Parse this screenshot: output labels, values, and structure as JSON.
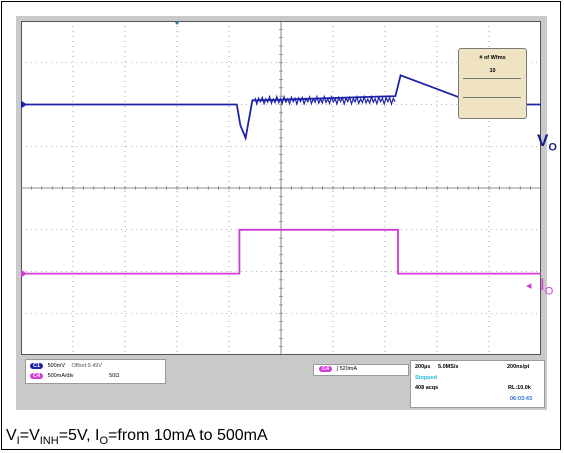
{
  "chart_data": {
    "type": "line",
    "title": "",
    "xlabel": "",
    "ylabel": "",
    "grid": true,
    "x_divisions": 10,
    "y_divisions": 8,
    "xlim": [
      0,
      10
    ],
    "ylim": [
      -4,
      4
    ],
    "series": [
      {
        "name": "VO",
        "color": "#1c23a8",
        "points": [
          [
            0,
            2.0
          ],
          [
            4.15,
            2.0
          ],
          [
            4.22,
            1.5
          ],
          [
            4.32,
            1.2
          ],
          [
            4.45,
            2.1
          ],
          [
            4.6,
            2.1
          ],
          [
            7.2,
            2.2
          ],
          [
            7.3,
            2.7
          ],
          [
            8.9,
            1.95
          ],
          [
            9.1,
            2.0
          ],
          [
            10,
            2.0
          ]
        ]
      },
      {
        "name": "IO",
        "color": "#d23bd6",
        "points": [
          [
            0,
            -2.05
          ],
          [
            4.2,
            -2.05
          ],
          [
            4.2,
            -1.0
          ],
          [
            7.25,
            -1.0
          ],
          [
            7.25,
            -2.05
          ],
          [
            10,
            -2.05
          ]
        ]
      }
    ]
  },
  "labels": {
    "vo_tag": "V",
    "vo_sub": "O",
    "io_tag": "I",
    "io_sub": "O",
    "arrow": "◂"
  },
  "wfm": {
    "title": "# of Wfms",
    "value": "10"
  },
  "status": {
    "c1_badge": "C1",
    "c1_scale": "500mV",
    "c1_offset": "Offset:9.49V",
    "c4_badge": "C4",
    "c4_scale": "500mA/div",
    "c4_imp": "50Ω",
    "trig_badge": "C4",
    "trig_level": "∫ 520mA",
    "timebase": "200µs",
    "sample_rate": "5.0MS/s",
    "resolution": "200ns/pt",
    "state": "Stopped",
    "acqs": "408 acqs",
    "record_length": "RL:10.0k",
    "time": "06:03:43"
  },
  "caption": {
    "part1": "V",
    "sub1": "I",
    "part2": "=V",
    "sub2": "INH",
    "part3": "=5V, I",
    "sub3": "O",
    "part4": "=from 10mA to 500mA"
  },
  "colors": {
    "screen_bg": "#c9c9c9",
    "grid": "#6a6a6a",
    "vo": "#1c23a8",
    "io": "#d23bd6"
  }
}
